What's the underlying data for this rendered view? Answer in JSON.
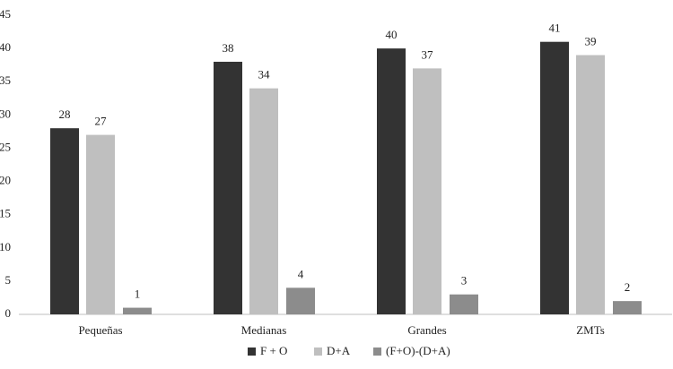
{
  "chart_data": {
    "type": "bar",
    "categories": [
      "Pequeñas",
      "Medianas",
      "Grandes",
      "ZMTs"
    ],
    "series": [
      {
        "name": "F + O",
        "color": "#333333",
        "values": [
          28,
          38,
          40,
          41
        ]
      },
      {
        "name": "D+A",
        "color": "#bfbfbf",
        "values": [
          27,
          34,
          37,
          39
        ]
      },
      {
        "name": "(F+O)-(D+A)",
        "color": "#8c8c8c",
        "values": [
          1,
          4,
          3,
          2
        ]
      }
    ],
    "ylim": [
      0,
      45
    ],
    "yticks": [
      0,
      5,
      10,
      15,
      20,
      25,
      30,
      35,
      40,
      45
    ],
    "grid": false,
    "legend": "bottom"
  }
}
